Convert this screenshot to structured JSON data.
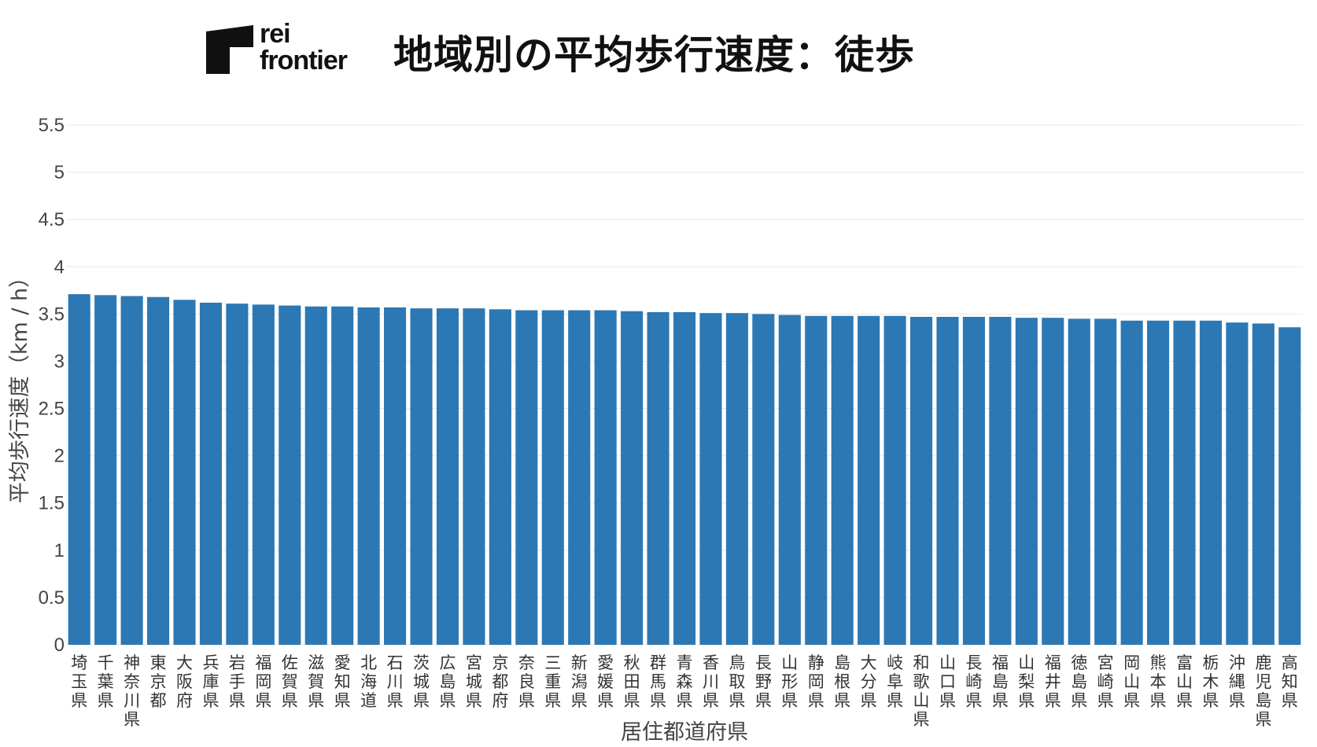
{
  "brand": {
    "line1": "rei",
    "line2": "frontier"
  },
  "title": "地域別の平均歩行速度：徒歩",
  "chart_data": {
    "type": "bar",
    "xlabel": "居住都道府県",
    "ylabel": "平均歩行速度（km / h）",
    "ylim": [
      0,
      5.5
    ],
    "yticks": [
      "0",
      "0.5",
      "1",
      "1.5",
      "2",
      "2.5",
      "3",
      "3.5",
      "4",
      "4.5",
      "5",
      "5.5"
    ],
    "grid": true,
    "bar_color": "#2b78b5",
    "categories": [
      "埼玉県",
      "千葉県",
      "神奈川県",
      "東京都",
      "大阪府",
      "兵庫県",
      "岩手県",
      "福岡県",
      "佐賀県",
      "滋賀県",
      "愛知県",
      "北海道",
      "石川県",
      "茨城県",
      "広島県",
      "宮城県",
      "京都府",
      "奈良県",
      "三重県",
      "新潟県",
      "愛媛県",
      "秋田県",
      "群馬県",
      "青森県",
      "香川県",
      "鳥取県",
      "長野県",
      "山形県",
      "静岡県",
      "島根県",
      "大分県",
      "岐阜県",
      "和歌山県",
      "山口県",
      "長崎県",
      "福島県",
      "山梨県",
      "福井県",
      "徳島県",
      "宮崎県",
      "岡山県",
      "熊本県",
      "富山県",
      "栃木県",
      "沖縄県",
      "鹿児島県",
      "高知県"
    ],
    "values": [
      3.71,
      3.7,
      3.69,
      3.68,
      3.65,
      3.62,
      3.61,
      3.6,
      3.59,
      3.58,
      3.58,
      3.57,
      3.57,
      3.56,
      3.56,
      3.56,
      3.55,
      3.54,
      3.54,
      3.54,
      3.54,
      3.53,
      3.52,
      3.52,
      3.51,
      3.51,
      3.5,
      3.49,
      3.48,
      3.48,
      3.48,
      3.48,
      3.47,
      3.47,
      3.47,
      3.47,
      3.46,
      3.46,
      3.45,
      3.45,
      3.43,
      3.43,
      3.43,
      3.43,
      3.41,
      3.4,
      3.36
    ]
  }
}
